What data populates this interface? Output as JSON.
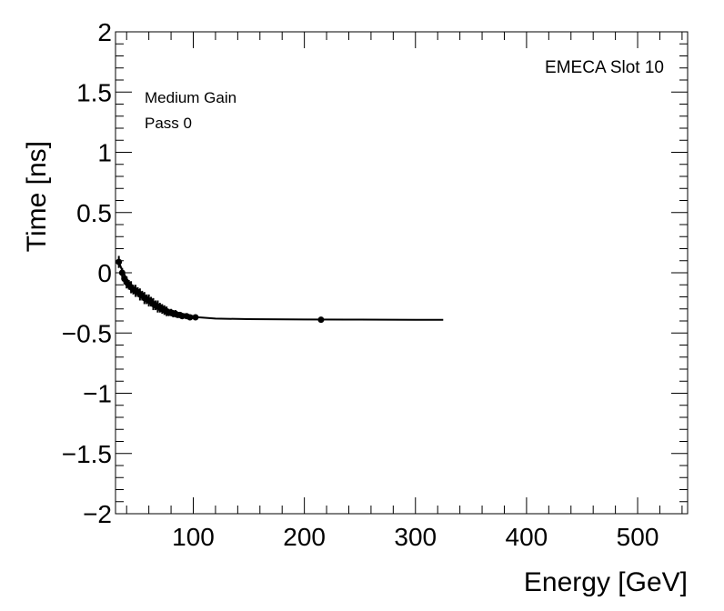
{
  "chart_data": {
    "type": "scatter",
    "title": "",
    "xlabel": "Energy [GeV]",
    "ylabel": "Time [ns]",
    "xlim": [
      30,
      545
    ],
    "ylim": [
      -2,
      2
    ],
    "x_major_ticks": [
      100,
      200,
      300,
      400,
      500
    ],
    "x_tick_labels": [
      "100",
      "200",
      "300",
      "400",
      "500"
    ],
    "y_major_ticks": [
      -2,
      -1.5,
      -1,
      -0.5,
      0,
      0.5,
      1,
      1.5,
      2
    ],
    "y_tick_labels": [
      "−2",
      "−1.5",
      "−1",
      "−0.5",
      "0",
      "0.5",
      "1",
      "1.5",
      "2"
    ],
    "annotations": {
      "gain": "Medium Gain",
      "pass": "Pass 0",
      "slot": "EMECA Slot 10"
    },
    "series": [
      {
        "name": "data",
        "marker": "circle",
        "x": [
          33,
          36,
          38,
          40,
          42,
          44,
          46,
          48,
          50,
          52,
          54,
          56,
          58,
          60,
          62,
          64,
          66,
          68,
          70,
          72,
          74,
          76,
          78,
          80,
          82,
          84,
          86,
          88,
          90,
          94,
          97,
          102,
          215
        ],
        "y": [
          0.09,
          0.0,
          -0.05,
          -0.08,
          -0.1,
          -0.12,
          -0.14,
          -0.15,
          -0.16,
          -0.18,
          -0.19,
          -0.21,
          -0.22,
          -0.23,
          -0.24,
          -0.26,
          -0.27,
          -0.28,
          -0.29,
          -0.3,
          -0.31,
          -0.32,
          -0.33,
          -0.33,
          -0.34,
          -0.34,
          -0.35,
          -0.35,
          -0.36,
          -0.36,
          -0.37,
          -0.37,
          -0.39
        ],
        "yerr": [
          0.05,
          0.04,
          0.04,
          0.05,
          0.04,
          0.05,
          0.04,
          0.05,
          0.04,
          0.05,
          0.04,
          0.05,
          0.04,
          0.05,
          0.04,
          0.05,
          0.04,
          0.05,
          0.04,
          0.04,
          0.04,
          0.04,
          0.03,
          0.03,
          0.03,
          0.03,
          0.02,
          0.02,
          0.02,
          0.02,
          0.01,
          0.01,
          0.01
        ]
      }
    ],
    "fit_curve": {
      "x": [
        33,
        36,
        40,
        45,
        50,
        55,
        60,
        65,
        70,
        75,
        80,
        85,
        90,
        95,
        100,
        105,
        120,
        150,
        200,
        250,
        300,
        325
      ],
      "y": [
        0.09,
        0.02,
        -0.05,
        -0.11,
        -0.16,
        -0.2,
        -0.23,
        -0.26,
        -0.28,
        -0.3,
        -0.32,
        -0.33,
        -0.34,
        -0.35,
        -0.36,
        -0.37,
        -0.38,
        -0.385,
        -0.388,
        -0.389,
        -0.39,
        -0.39
      ]
    }
  }
}
